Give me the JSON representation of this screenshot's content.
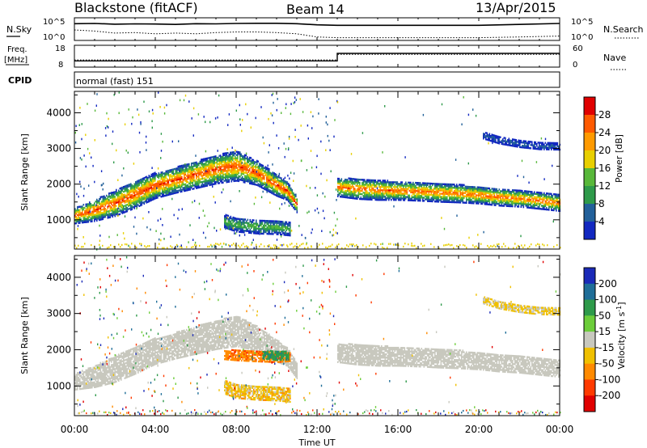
{
  "header": {
    "station": "Blackstone (fitACF)",
    "beam": "Beam 14",
    "date": "13/Apr/2015"
  },
  "panels": {
    "nsky_label": "N.Sky",
    "nsearch_label": "N.Search",
    "noise_ticks": [
      "10^5",
      "10^0"
    ],
    "freq_label": "Freq.",
    "freq_unit": "[MHz]",
    "freq_ticks": [
      "18",
      "8"
    ],
    "nave_label": "Nave",
    "nave_ticks": [
      "60",
      "0"
    ],
    "cpid_label": "CPID",
    "cpid_value": "normal (fast) 151"
  },
  "chart_data": [
    {
      "type": "line",
      "panel": "noise",
      "x_unit": "hours UT",
      "series": [
        {
          "name": "N.Sky",
          "x": [
            0,
            1,
            2,
            3,
            4,
            5,
            6,
            7,
            8,
            9,
            10,
            11,
            12,
            13,
            14,
            16,
            18,
            20,
            22,
            24
          ],
          "values": [
            8000,
            9000,
            6000,
            7000,
            6500,
            5000,
            8000,
            7000,
            9000,
            10000,
            10000,
            8000,
            4000,
            3000,
            3000,
            3000,
            3000,
            3000,
            5000,
            9000
          ]
        },
        {
          "name": "N.Search",
          "x": [
            0,
            1,
            2,
            3,
            4,
            5,
            6,
            7,
            8,
            9,
            10,
            11,
            12,
            13,
            14,
            16,
            18,
            20,
            22,
            24
          ],
          "values": [
            200,
            100,
            30,
            40,
            20,
            30,
            20,
            40,
            60,
            60,
            40,
            20,
            3,
            2,
            2,
            2,
            2,
            2,
            3,
            5
          ]
        }
      ],
      "ylim": [
        1,
        100000
      ],
      "yscale": "log"
    },
    {
      "type": "line",
      "panel": "frequency",
      "x_unit": "hours UT",
      "series": [
        {
          "name": "Freq.",
          "x": [
            0,
            13,
            13,
            24
          ],
          "values": [
            10.5,
            10.5,
            14.5,
            14.5
          ]
        },
        {
          "name": "Nave",
          "x": [
            0,
            13,
            13,
            24
          ],
          "values": [
            18,
            18,
            36,
            36
          ]
        }
      ],
      "ylim_freq": [
        8,
        18
      ],
      "ylim_nave": [
        0,
        60
      ]
    },
    {
      "type": "heatmap",
      "panel": "power",
      "xlabel": "",
      "ylabel": "Slant Range [km]",
      "xlim": [
        0,
        24
      ],
      "ylim": [
        180,
        4600
      ],
      "yticks": [
        1000,
        2000,
        3000,
        4000
      ],
      "colorbar": {
        "label": "Power [dB]",
        "ticks": [
          "28",
          "24",
          "20",
          "16",
          "12",
          "8",
          "4"
        ],
        "colors": [
          "#e00000",
          "#ff5a00",
          "#ff9a00",
          "#e8cf00",
          "#58b83a",
          "#2e9a4a",
          "#22609a",
          "#1228c0"
        ]
      },
      "bands": [
        {
          "x": [
            0,
            1,
            2,
            3,
            4,
            5,
            6,
            7,
            8,
            9,
            10,
            10.5,
            11
          ],
          "center": [
            1100,
            1250,
            1450,
            1700,
            1950,
            2100,
            2250,
            2400,
            2500,
            2300,
            1950,
            1800,
            1400
          ],
          "halfwidth": [
            220,
            300,
            360,
            380,
            360,
            360,
            380,
            400,
            420,
            340,
            300,
            260,
            220
          ],
          "peak_db": 28
        },
        {
          "x": [
            13,
            14,
            15,
            16,
            17,
            18,
            19,
            20,
            21,
            22,
            23,
            24
          ],
          "center": [
            1900,
            1850,
            1820,
            1800,
            1780,
            1750,
            1720,
            1680,
            1620,
            1580,
            1520,
            1460
          ],
          "halfwidth": [
            260,
            280,
            280,
            260,
            260,
            260,
            250,
            240,
            240,
            230,
            230,
            230
          ],
          "peak_db": 26
        },
        {
          "x": [
            7.4,
            8,
            9,
            10,
            10.7
          ],
          "center": [
            950,
            850,
            800,
            780,
            720
          ],
          "halfwidth": [
            180,
            200,
            200,
            200,
            180
          ],
          "peak_db": 14
        },
        {
          "x": [
            20.2,
            21,
            22,
            23,
            24
          ],
          "center": [
            3350,
            3220,
            3120,
            3060,
            3050
          ],
          "halfwidth": [
            90,
            100,
            100,
            100,
            100
          ],
          "peak_db": 6
        }
      ]
    },
    {
      "type": "heatmap",
      "panel": "velocity",
      "xlabel": "Time UT",
      "ylabel": "Slant Range [km]",
      "xlim": [
        0,
        24
      ],
      "ylim": [
        180,
        4600
      ],
      "yticks": [
        1000,
        2000,
        3000,
        4000
      ],
      "xtick_labels": [
        "00:00",
        "04:00",
        "08:00",
        "12:00",
        "16:00",
        "20:00",
        "00:00"
      ],
      "xtick_values": [
        0,
        4,
        8,
        12,
        16,
        20,
        24
      ],
      "colorbar": {
        "label": "Velocity [m s",
        "label_sup": "-1",
        "label_end": "]",
        "ticks": [
          "200",
          "100",
          "50",
          "15",
          "-15",
          "-50",
          "-100",
          "-200"
        ],
        "colors": [
          "#1a2ab8",
          "#1f6e98",
          "#2e9a4a",
          "#6ccd3a",
          "#c8c8be",
          "#f0c000",
          "#ff8a00",
          "#ff3a00",
          "#e00000"
        ]
      },
      "bands": [
        {
          "x": [
            0,
            1,
            2,
            3,
            4,
            5,
            6,
            7,
            8,
            9,
            10,
            10.5,
            11
          ],
          "center": [
            1100,
            1250,
            1450,
            1700,
            1950,
            2100,
            2250,
            2400,
            2500,
            2300,
            1950,
            1800,
            1400
          ],
          "halfwidth": [
            220,
            300,
            360,
            380,
            360,
            360,
            380,
            400,
            420,
            340,
            300,
            260,
            220
          ],
          "velocity": 0
        },
        {
          "x": [
            13,
            14,
            15,
            16,
            17,
            18,
            19,
            20,
            21,
            22,
            23,
            24
          ],
          "center": [
            1900,
            1850,
            1820,
            1800,
            1780,
            1750,
            1720,
            1680,
            1620,
            1580,
            1520,
            1460
          ],
          "halfwidth": [
            260,
            280,
            280,
            260,
            260,
            260,
            250,
            240,
            240,
            230,
            230,
            230
          ],
          "velocity": 0
        },
        {
          "x": [
            7.4,
            8,
            9,
            10,
            10.7
          ],
          "center": [
            1850,
            1830,
            1800,
            1780,
            1800
          ],
          "halfwidth": [
            130,
            140,
            140,
            140,
            130
          ],
          "velocity": -80
        },
        {
          "x": [
            9.3,
            10,
            10.6
          ],
          "center": [
            1850,
            1820,
            1820
          ],
          "halfwidth": [
            110,
            120,
            110
          ],
          "velocity": 80
        },
        {
          "x": [
            7.4,
            8,
            9,
            10,
            10.7
          ],
          "center": [
            950,
            850,
            800,
            780,
            720
          ],
          "halfwidth": [
            180,
            200,
            200,
            200,
            180
          ],
          "velocity": -30
        },
        {
          "x": [
            20.2,
            21,
            22,
            23,
            24
          ],
          "center": [
            3350,
            3220,
            3120,
            3060,
            3050
          ],
          "halfwidth": [
            90,
            100,
            100,
            100,
            100
          ],
          "velocity": -20
        }
      ]
    }
  ]
}
